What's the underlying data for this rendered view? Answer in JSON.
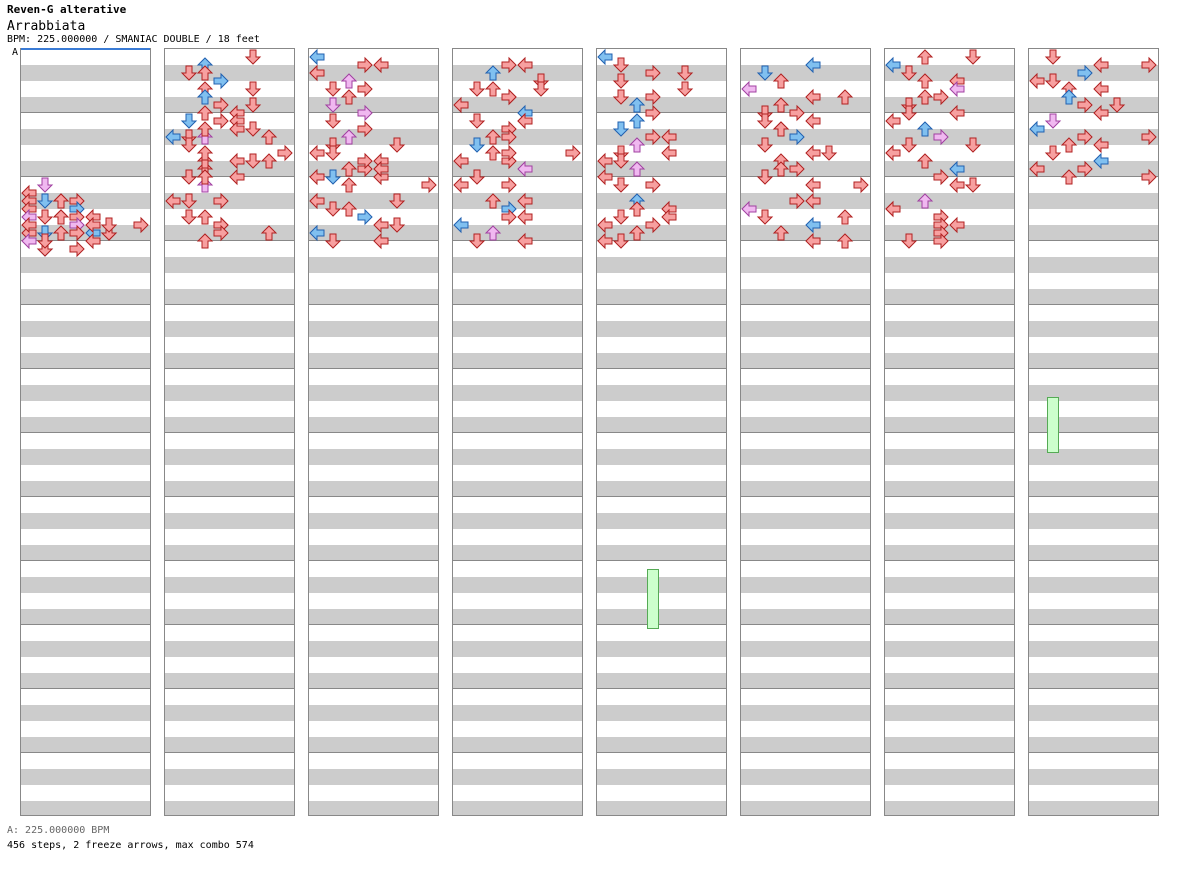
{
  "header": {
    "title": "Reven-G alterative",
    "song": "Arrabbiata",
    "meta": "BPM: 225.000000 / SMANIAC DOUBLE / 18 feet",
    "bpm_marker": "A"
  },
  "footer": {
    "bpm_legend": "A: 225.000000 BPM",
    "stats": "456 steps, 2 freeze arrows, max combo 574"
  },
  "chart": {
    "columns": 8,
    "bars_per_column": 12,
    "lanes": 8,
    "colors": {
      "quarter": "#f7a0a0",
      "quarter_stroke": "#b02020",
      "eighth": "#80c0f0",
      "eighth_stroke": "#2060b0",
      "sixteenth": "#f0b8f0",
      "sixteenth_stroke": "#a040a0",
      "freeze": "#ccffcc",
      "freeze_stroke": "#55aa55",
      "stripe_light": "#ffffff",
      "stripe_dark": "#cccccc",
      "bar_line": "#888888"
    },
    "freezes": [
      {
        "column": 5,
        "lane": 3,
        "start_beat": 32,
        "end_beat": 35.75
      },
      {
        "column": 8,
        "lane": 1,
        "start_beat": 21.25,
        "end_beat": 24.75
      }
    ],
    "steps": [
      [
        8,
        1,
        0,
        3,
        9,
        1,
        4,
        1,
        8.5,
        0,
        4,
        2,
        9,
        2,
        0,
        4,
        10,
        2,
        6,
        2,
        11,
        2,
        4,
        2,
        12,
        1,
        1,
        1,
        11,
        1,
        3,
        0,
        9,
        3,
        2,
        0,
        9.5,
        3,
        0,
        1,
        10,
        3,
        1,
        4,
        10.5,
        3,
        3,
        3,
        11,
        3,
        5,
        4,
        12,
        3,
        1,
        0,
        11,
        4,
        7,
        1,
        11,
        5,
        0,
        0,
        9.5,
        0,
        6,
        2,
        10,
        0,
        3,
        3,
        10.5,
        0,
        5,
        4,
        11,
        1,
        7,
        1,
        11.5,
        1,
        4,
        4,
        10,
        4,
        2,
        0,
        10.5,
        4,
        7,
        4,
        11.5,
        0,
        1,
        3
      ],
      [
        0,
        5,
        6,
        2,
        0.5,
        2,
        5,
        1,
        1,
        2,
        1,
        0,
        1.5,
        3,
        0,
        1,
        2,
        2,
        5,
        4,
        2.5,
        2,
        3,
        1,
        3,
        3,
        5,
        4,
        3.5,
        4,
        2,
        0,
        4,
        3,
        4,
        4,
        4.5,
        4,
        6,
        2,
        5,
        2,
        3,
        3,
        5,
        1,
        6,
        4,
        7,
        2,
        7,
        2,
        6.5,
        5,
        2,
        4,
        7.5,
        1,
        4,
        0,
        8,
        2,
        5,
        3,
        9,
        0,
        0,
        2,
        9,
        3,
        1,
        4,
        10,
        2,
        1,
        4,
        10.5,
        3,
        3,
        4,
        11,
        3,
        6,
        4,
        11.5,
        2,
        4,
        2,
        4,
        1,
        3,
        1,
        4.5,
        2,
        5,
        0,
        5,
        0,
        1,
        1,
        5.5,
        1,
        6,
        2,
        6,
        2,
        7,
        0,
        6.5,
        4,
        6,
        4,
        7.5,
        2,
        2,
        0
      ],
      [
        0,
        0,
        4,
        1,
        0.5,
        4,
        3,
        4,
        1,
        0,
        0,
        0,
        1.5,
        2,
        2,
        3,
        2,
        3,
        1,
        4,
        2.5,
        2,
        4,
        2,
        3,
        1,
        3,
        3,
        3.5,
        3,
        1,
        3,
        4,
        1,
        4,
        2,
        4.5,
        3,
        6,
        2,
        5,
        2,
        3,
        3,
        5.5,
        1,
        5,
        4,
        6,
        0,
        1,
        0,
        6.5,
        4,
        4,
        2,
        7,
        3,
        2,
        0,
        7.5,
        4,
        0,
        0,
        8,
        2,
        7,
        4,
        9,
        0,
        5,
        0,
        9.5,
        1,
        2,
        0,
        10,
        3,
        3,
        1,
        10.5,
        4,
        5,
        4,
        11,
        0,
        6,
        1,
        11.5,
        4,
        1,
        4,
        6.5,
        3,
        7,
        2,
        7,
        4,
        4,
        4,
        7.5,
        1,
        3,
        1
      ],
      [
        0.5,
        3,
        4,
        0,
        1,
        2,
        6,
        1,
        1.5,
        5,
        7,
        2,
        2,
        1,
        2,
        0,
        2.5,
        3,
        3,
        4,
        3,
        0,
        1,
        2,
        3.5,
        4,
        2,
        1,
        4,
        1,
        4,
        4,
        4.5,
        3,
        6,
        2,
        5,
        2,
        3,
        4,
        5.5,
        1,
        4,
        1,
        6,
        2,
        7,
        0,
        6.5,
        0,
        3,
        0,
        7,
        4,
        5,
        3,
        7.5,
        1,
        2,
        2,
        8,
        3,
        0,
        0,
        9,
        2,
        4,
        0,
        9.5,
        3,
        0,
        1,
        10,
        4,
        3,
        4,
        10.5,
        0,
        7,
        1,
        11,
        2,
        6,
        3,
        11.5,
        4,
        1,
        0,
        2,
        5,
        3,
        2,
        4,
        4,
        6,
        2,
        6,
        3,
        2,
        4
      ],
      [
        0,
        0,
        3,
        1,
        0.5,
        1,
        6,
        2,
        1,
        3,
        5,
        0,
        1.5,
        1,
        3,
        2,
        2,
        5,
        6,
        2,
        2.5,
        3,
        1,
        4,
        3,
        2,
        4,
        1,
        3.5,
        3,
        5,
        2,
        4,
        2,
        6,
        1,
        4.5,
        1,
        3,
        1,
        5,
        3,
        4,
        0,
        5.5,
        2,
        6,
        3,
        6,
        1,
        4,
        4,
        6.5,
        0,
        1,
        0,
        7,
        2,
        7,
        3,
        7.5,
        0,
        2,
        2,
        8,
        1,
        3,
        0,
        9,
        2,
        5,
        1,
        9.5,
        4,
        2,
        0,
        10,
        1,
        4,
        0,
        10.5,
        3,
        0,
        4,
        11,
        2,
        6,
        2,
        11.5,
        0,
        1,
        0
      ],
      [
        0.5,
        4,
        7,
        1,
        1,
        1,
        3,
        1,
        1.5,
        2,
        5,
        2,
        2,
        0,
        4,
        3,
        2.5,
        4,
        6,
        4,
        3,
        2,
        5,
        2,
        3.5,
        3,
        1,
        0,
        4,
        1,
        4,
        4,
        4.5,
        2,
        2,
        0,
        5,
        3,
        6,
        1,
        5.5,
        1,
        7,
        2,
        6,
        4,
        5,
        4,
        6.5,
        2,
        3,
        2,
        7,
        3,
        2,
        4,
        7.5,
        1,
        4,
        2,
        8,
        4,
        7,
        0,
        9,
        3,
        4,
        0,
        9.5,
        0,
        2,
        3,
        10,
        1,
        6,
        4,
        10.5,
        4,
        5,
        1,
        11,
        2,
        3,
        2,
        11.5,
        4,
        6,
        4
      ],
      [
        0,
        5,
        2,
        0,
        0.5,
        0,
        2,
        1,
        1,
        1,
        7,
        2,
        1.5,
        2,
        4,
        0,
        2,
        4,
        1,
        3,
        2.5,
        3,
        2,
        0,
        3,
        1,
        5,
        2,
        3.5,
        4,
        1,
        4,
        4,
        0,
        3,
        2,
        4.5,
        2,
        4,
        1,
        5,
        3,
        2,
        3,
        5.5,
        1,
        5,
        4,
        6,
        0,
        0,
        0,
        6.5,
        2,
        4,
        2,
        7,
        4,
        6,
        1,
        7.5,
        3,
        3,
        2,
        8,
        4,
        5,
        4,
        9,
        2,
        1,
        3,
        9.5,
        0,
        0,
        0,
        10,
        3,
        4,
        2,
        10.5,
        4,
        3,
        4,
        11,
        3,
        6,
        2,
        11.5,
        1,
        3,
        4
      ],
      [
        0,
        1,
        6,
        2,
        0.5,
        4,
        7,
        0,
        1,
        3,
        3,
        1,
        1.5,
        0,
        1,
        4,
        2,
        4,
        2,
        0,
        2.5,
        2,
        4,
        1,
        3,
        3,
        5,
        4,
        3.5,
        4,
        3,
        2,
        4,
        1,
        7,
        3,
        4.5,
        0,
        2,
        1,
        5,
        3,
        7,
        0,
        5.5,
        2,
        4,
        4,
        6,
        1,
        3,
        2,
        6.5,
        4,
        5,
        1,
        7,
        0,
        3,
        4,
        7.5,
        2,
        7,
        0
      ]
    ]
  }
}
